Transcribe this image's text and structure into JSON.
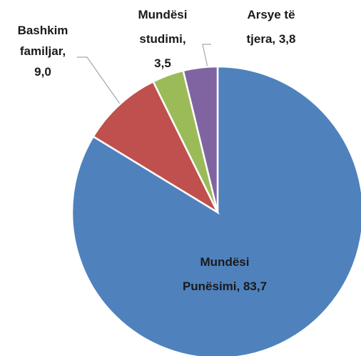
{
  "chart_data": {
    "type": "pie",
    "values": [
      83.7,
      9.0,
      3.5,
      3.8
    ],
    "value_labels": [
      "Mundësi Punësimi, 83,7",
      "Bashkim familjar, 9,0",
      "Mundësi studimi, 3,5",
      "Arsye të tjera, 3,8"
    ],
    "colors": [
      "#4f81bd",
      "#c0504d",
      "#9bbb59",
      "#8064a2"
    ]
  }
}
